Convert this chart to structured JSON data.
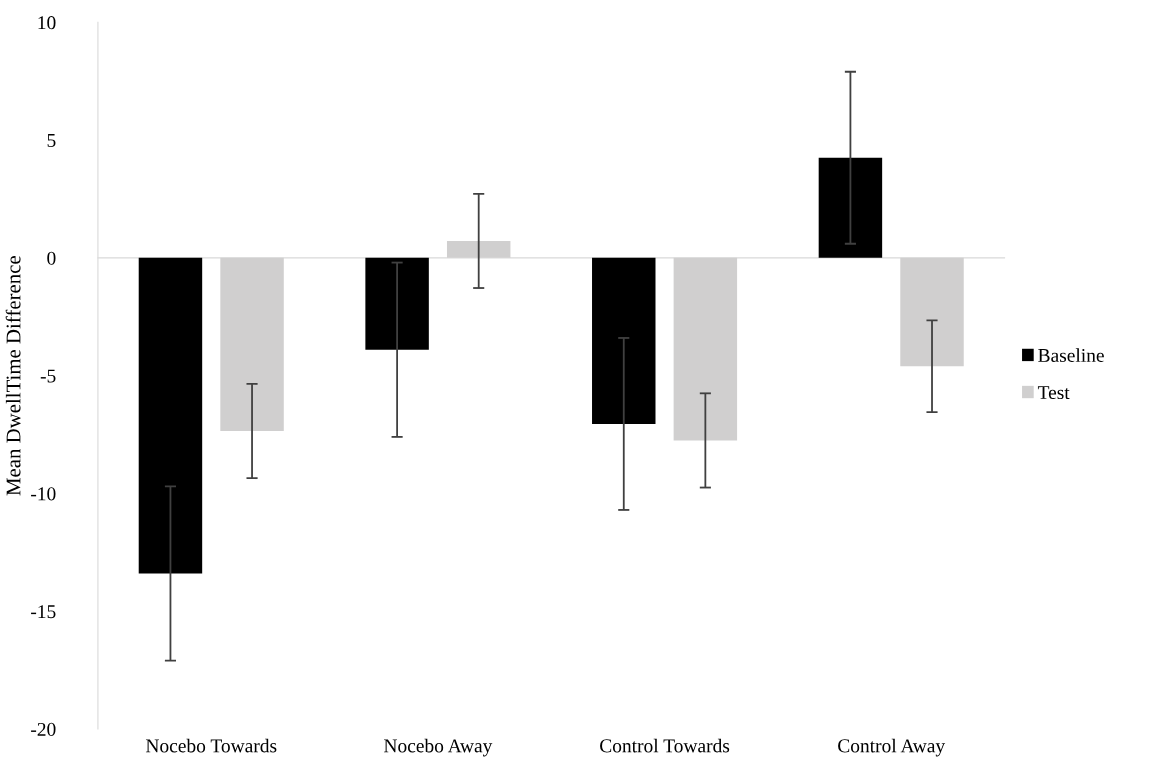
{
  "chart_data": {
    "type": "bar",
    "ylabel": "Mean DwellTime Difference",
    "categories": [
      "Nocebo Towards",
      "Nocebo Away",
      "Control Towards",
      "Control Away"
    ],
    "series": [
      {
        "name": "Baseline",
        "color": "#000000",
        "values": [
          -13.4,
          -3.9,
          -7.05,
          4.25
        ],
        "errors": [
          3.7,
          3.7,
          3.65,
          3.65
        ]
      },
      {
        "name": "Test",
        "color": "#d0cfcf",
        "values": [
          -7.35,
          0.72,
          -7.75,
          -4.6
        ],
        "errors": [
          2.0,
          2.0,
          2.0,
          1.95
        ]
      }
    ],
    "ylim": [
      -20,
      10
    ],
    "yticks": [
      -20,
      -15,
      -10,
      -5,
      0,
      5,
      10
    ],
    "legend": "right"
  }
}
